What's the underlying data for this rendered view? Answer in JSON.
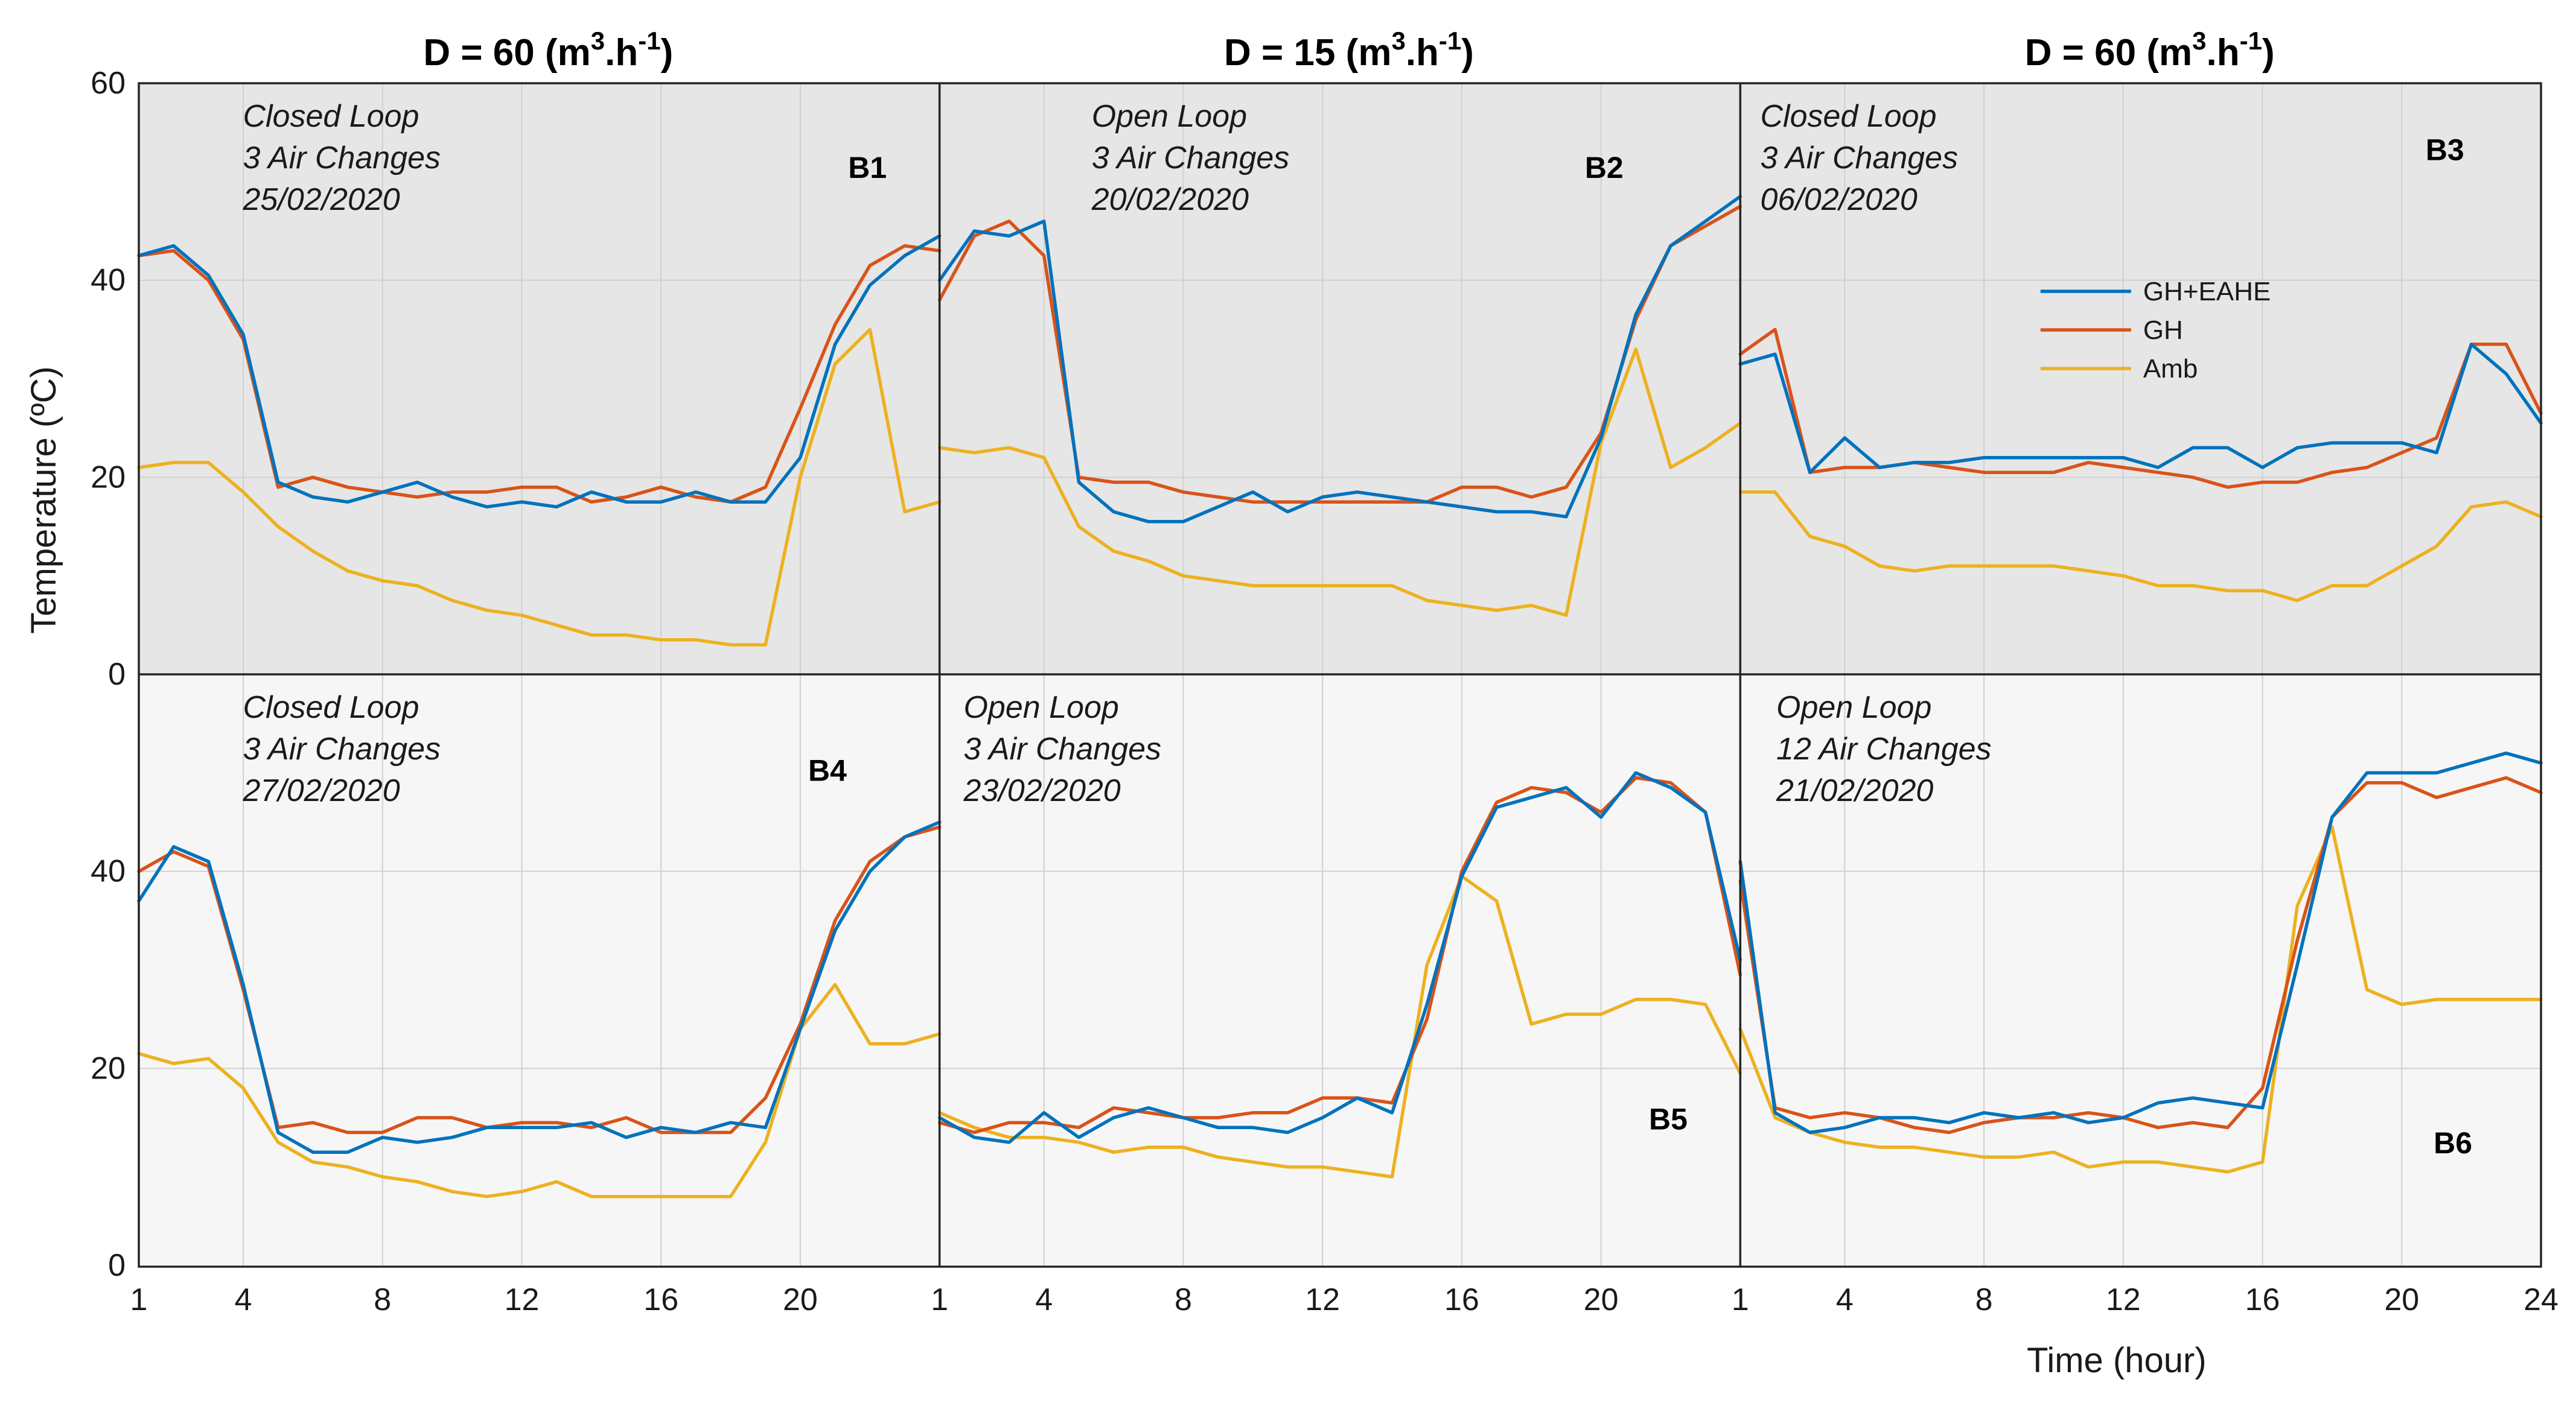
{
  "chart_data": {
    "type": "line",
    "x_label": "Time (hour)",
    "y_label": "Temperature (ºC)",
    "ylim": [
      0,
      60
    ],
    "y_ticks": [
      "0",
      "20",
      "40",
      "60"
    ],
    "x_ticks": [
      1,
      4,
      8,
      12,
      16,
      20
    ],
    "x_ticks_last": [
      1,
      4,
      8,
      12,
      16,
      20,
      24
    ],
    "grid": true,
    "colors": {
      "GH+EAHE": "#0072bd",
      "GH": "#d95319",
      "Amb": "#edb120"
    },
    "legend": {
      "entries": [
        "GH+EAHE",
        "GH",
        "Amb"
      ],
      "placement": "inside panel B3, upper-right"
    },
    "columns": [
      {
        "title_main": "D = 60 (m",
        "title_sup1": "3",
        "title_mid": ".h",
        "title_sup2": "-1",
        "title_end": ")"
      },
      {
        "title_main": "D = 15 (m",
        "title_sup1": "3",
        "title_mid": ".h",
        "title_sup2": "-1",
        "title_end": ")"
      },
      {
        "title_main": "D = 60 (m",
        "title_sup1": "3",
        "title_mid": ".h",
        "title_sup2": "-1",
        "title_end": ")"
      }
    ],
    "panels": [
      {
        "id": "B1",
        "label": "B1",
        "note": [
          "Closed Loop",
          "3 Air Changes",
          "25/02/2020"
        ],
        "series": [
          {
            "name": "GH+EAHE",
            "values": [
              42.5,
              43.5,
              40.5,
              34.5,
              19.5,
              18,
              17.5,
              18.5,
              19.5,
              18,
              17,
              17.5,
              17,
              18.5,
              17.5,
              17.5,
              18.5,
              17.5,
              17.5,
              22,
              33.5,
              39.5,
              42.5,
              44.5
            ]
          },
          {
            "name": "GH",
            "values": [
              42.5,
              43,
              40,
              34,
              19,
              20,
              19,
              18.5,
              18,
              18.5,
              18.5,
              19,
              19,
              17.5,
              18,
              19,
              18,
              17.5,
              19,
              27,
              35.5,
              41.5,
              43.5,
              43
            ]
          },
          {
            "name": "Amb",
            "values": [
              21,
              21.5,
              21.5,
              18.5,
              15,
              12.5,
              10.5,
              9.5,
              9,
              7.5,
              6.5,
              6,
              5,
              4,
              4,
              3.5,
              3.5,
              3,
              3,
              20,
              31.5,
              35,
              16.5,
              17.5
            ]
          }
        ]
      },
      {
        "id": "B2",
        "label": "B2",
        "note": [
          "Open Loop",
          "3 Air Changes",
          "20/02/2020"
        ],
        "series": [
          {
            "name": "GH+EAHE",
            "values": [
              40,
              45,
              44.5,
              46,
              19.5,
              16.5,
              15.5,
              15.5,
              17,
              18.5,
              16.5,
              18,
              18.5,
              18,
              17.5,
              17,
              16.5,
              16.5,
              16,
              24,
              36.5,
              43.5,
              46,
              48.5
            ]
          },
          {
            "name": "GH",
            "values": [
              38,
              44.5,
              46,
              42.5,
              20,
              19.5,
              19.5,
              18.5,
              18,
              17.5,
              17.5,
              17.5,
              17.5,
              17.5,
              17.5,
              19,
              19,
              18,
              19,
              24.5,
              36,
              43.5,
              45.5,
              47.5
            ]
          },
          {
            "name": "Amb",
            "values": [
              23,
              22.5,
              23,
              22,
              15,
              12.5,
              11.5,
              10,
              9.5,
              9,
              9,
              9,
              9,
              9,
              7.5,
              7,
              6.5,
              7,
              6,
              23.5,
              33,
              21,
              23,
              25.5
            ]
          }
        ]
      },
      {
        "id": "B3",
        "label": "B3",
        "note": [
          "Closed Loop",
          "3 Air Changes",
          "06/02/2020"
        ],
        "series": [
          {
            "name": "GH+EAHE",
            "values": [
              31.5,
              32.5,
              20.5,
              24,
              21,
              21.5,
              21.5,
              22,
              22,
              22,
              22,
              22,
              21,
              23,
              23,
              21,
              23,
              23.5,
              23.5,
              23.5,
              22.5,
              33.5,
              30.5,
              25.5
            ]
          },
          {
            "name": "GH",
            "values": [
              32.5,
              35,
              20.5,
              21,
              21,
              21.5,
              21,
              20.5,
              20.5,
              20.5,
              21.5,
              21,
              20.5,
              20,
              19,
              19.5,
              19.5,
              20.5,
              21,
              22.5,
              24,
              33.5,
              33.5,
              26.5
            ]
          },
          {
            "name": "Amb",
            "values": [
              18.5,
              18.5,
              14,
              13,
              11,
              10.5,
              11,
              11,
              11,
              11,
              10.5,
              10,
              9,
              9,
              8.5,
              8.5,
              7.5,
              9,
              9,
              11,
              13,
              17,
              17.5,
              16
            ]
          }
        ]
      },
      {
        "id": "B4",
        "label": "B4",
        "note": [
          "Closed Loop",
          "3 Air Changes",
          "27/02/2020"
        ],
        "series": [
          {
            "name": "GH+EAHE",
            "values": [
              37,
              42.5,
              41,
              28.5,
              13.5,
              11.5,
              11.5,
              13,
              12.5,
              13,
              14,
              14,
              14,
              14.5,
              13,
              14,
              13.5,
              14.5,
              14,
              24,
              34,
              40,
              43.5,
              45
            ]
          },
          {
            "name": "GH",
            "values": [
              40,
              42,
              40.5,
              28,
              14,
              14.5,
              13.5,
              13.5,
              15,
              15,
              14,
              14.5,
              14.5,
              14,
              15,
              13.5,
              13.5,
              13.5,
              17,
              24.5,
              35,
              41,
              43.5,
              44.5
            ]
          },
          {
            "name": "Amb",
            "values": [
              21.5,
              20.5,
              21,
              18,
              12.5,
              10.5,
              10,
              9,
              8.5,
              7.5,
              7,
              7.5,
              8.5,
              7,
              7,
              7,
              7,
              7,
              12.5,
              24,
              28.5,
              22.5,
              22.5,
              23.5
            ]
          }
        ]
      },
      {
        "id": "B5",
        "label": "B5",
        "note": [
          "Open Loop",
          "3 Air Changes",
          "23/02/2020"
        ],
        "series": [
          {
            "name": "GH+EAHE",
            "values": [
              15,
              13,
              12.5,
              15.5,
              13,
              15,
              16,
              15,
              14,
              14,
              13.5,
              15,
              17,
              15.5,
              26.5,
              39.5,
              46.5,
              47.5,
              48.5,
              45.5,
              50,
              48.5,
              46,
              31
            ]
          },
          {
            "name": "GH",
            "values": [
              14.5,
              13.5,
              14.5,
              14.5,
              14,
              16,
              15.5,
              15,
              15,
              15.5,
              15.5,
              17,
              17,
              16.5,
              25,
              40,
              47,
              48.5,
              48,
              46,
              49.5,
              49,
              46,
              29.5
            ]
          },
          {
            "name": "Amb",
            "values": [
              15.5,
              14,
              13,
              13,
              12.5,
              11.5,
              12,
              12,
              11,
              10.5,
              10,
              10,
              9.5,
              9,
              30.5,
              39.5,
              37,
              24.5,
              25.5,
              25.5,
              27,
              27,
              26.5,
              19.5
            ]
          }
        ]
      },
      {
        "id": "B6",
        "label": "B6",
        "note": [
          "Open Loop",
          "12 Air Changes",
          "21/02/2020"
        ],
        "series": [
          {
            "name": "GH+EAHE",
            "values": [
              41,
              15.5,
              13.5,
              14,
              15,
              15,
              14.5,
              15.5,
              15,
              15.5,
              14.5,
              15,
              16.5,
              17,
              16.5,
              16,
              30.5,
              45.5,
              50,
              50,
              50,
              51,
              52,
              51
            ]
          },
          {
            "name": "GH",
            "values": [
              39,
              16,
              15,
              15.5,
              15,
              14,
              13.5,
              14.5,
              15,
              15,
              15.5,
              15,
              14,
              14.5,
              14,
              18,
              33,
              45.5,
              49,
              49,
              47.5,
              48.5,
              49.5,
              48
            ]
          },
          {
            "name": "Amb",
            "values": [
              24,
              15,
              13.5,
              12.5,
              12,
              12,
              11.5,
              11,
              11,
              11.5,
              10,
              10.5,
              10.5,
              10,
              9.5,
              10.5,
              36.5,
              44.5,
              28,
              26.5,
              27,
              27,
              27,
              27
            ]
          }
        ]
      }
    ]
  }
}
